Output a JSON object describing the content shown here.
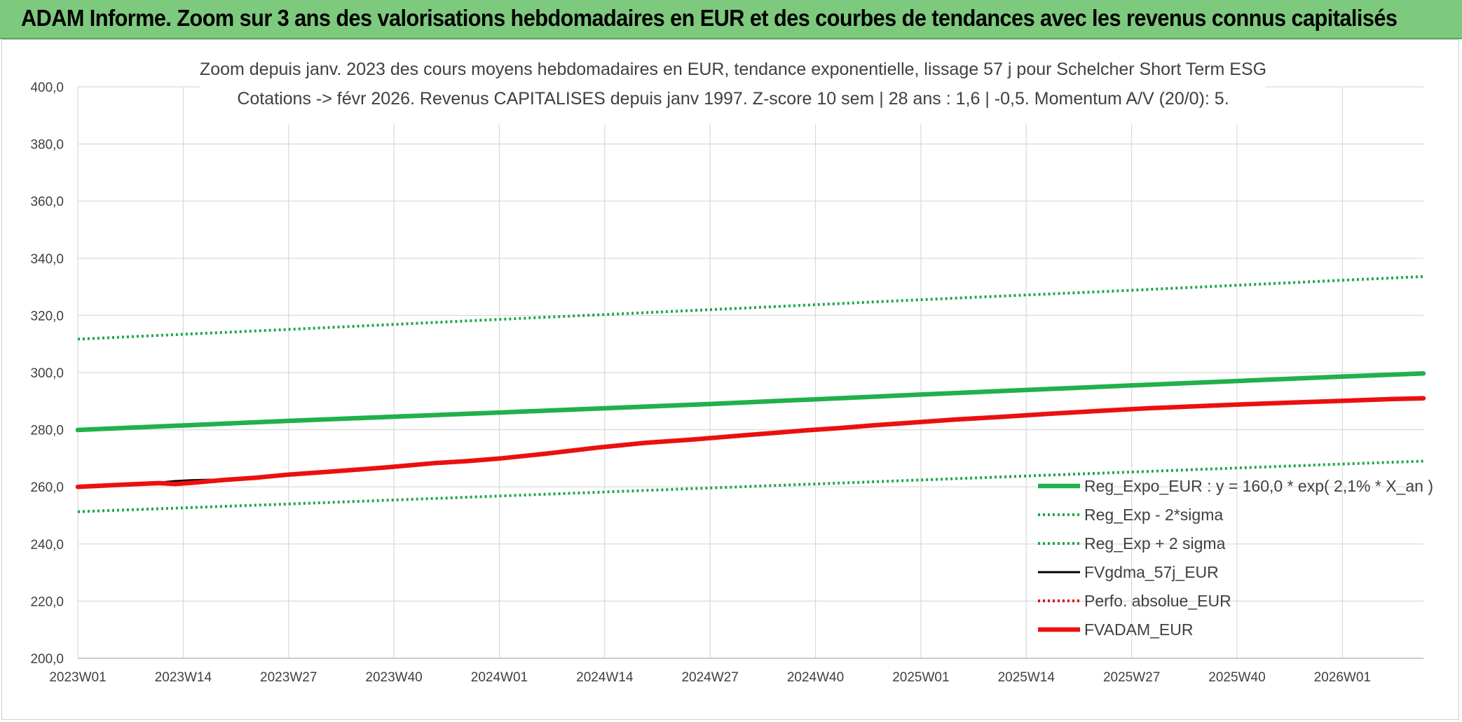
{
  "header": {
    "title": "ADAM Informe. Zoom sur 3 ans des valorisations hebdomadaires en EUR et des courbes de tendances avec les revenus connus capitalisés"
  },
  "chart_data": {
    "type": "line",
    "title_lines": [
      "Zoom depuis janv. 2023 des cours moyens hebdomadaires en EUR, tendance exponentielle, lissage 57 j pour Schelcher Short Term ESG",
      "Cotations -> févr 2026. Revenus CAPITALISES depuis janv 1997. Z-score 10 sem | 28 ans : 1,6 | -0,5. Momentum A/V (20/0): 5."
    ],
    "xlabel": "",
    "ylabel": "",
    "ylim": [
      200,
      400
    ],
    "y_ticks": [
      "200,0",
      "220,0",
      "240,0",
      "260,0",
      "280,0",
      "300,0",
      "320,0",
      "340,0",
      "360,0",
      "380,0",
      "400,0"
    ],
    "x_ticks": [
      "2023W01",
      "2023W14",
      "2023W27",
      "2023W40",
      "2024W01",
      "2024W14",
      "2024W27",
      "2024W40",
      "2025W01",
      "2025W14",
      "2025W27",
      "2025W40",
      "2026W01"
    ],
    "x_range_weeks": [
      0,
      166
    ],
    "grid": true,
    "legend_position": "bottom-right",
    "colors": {
      "green": "#22b04b",
      "green_dotted": "#1aa84a",
      "black": "#000000",
      "red_dotted": "#e01010",
      "red": "#ee1111",
      "grid": "#d9d9d9"
    },
    "series": [
      {
        "name": "Reg_Expo_EUR : y = 160,0 * exp( 2,1% *  X_an )",
        "style": "solid-thick",
        "color": "#22b04b",
        "x": [
          0,
          26,
          52,
          78,
          104,
          130,
          156,
          166
        ],
        "y": [
          279.9,
          283.1,
          286.0,
          289.0,
          292.3,
          295.5,
          298.6,
          299.7
        ]
      },
      {
        "name": "Reg_Exp - 2*sigma",
        "style": "dotted",
        "color": "#1aa84a",
        "x": [
          0,
          26,
          52,
          78,
          104,
          130,
          156,
          166
        ],
        "y": [
          251.3,
          254.0,
          256.8,
          259.6,
          262.4,
          265.2,
          268.0,
          269.0
        ]
      },
      {
        "name": "Reg_Exp + 2 sigma",
        "style": "dotted",
        "color": "#1aa84a",
        "x": [
          0,
          26,
          52,
          78,
          104,
          130,
          156,
          166
        ],
        "y": [
          311.7,
          315.1,
          318.6,
          322.0,
          325.5,
          328.8,
          332.3,
          333.6
        ]
      },
      {
        "name": "FVgdma_57j_EUR",
        "style": "solid",
        "color": "#000000",
        "x": [
          0,
          6,
          10,
          12,
          14,
          18,
          22,
          26,
          32,
          38,
          44,
          48,
          52,
          58,
          64,
          70,
          76,
          82,
          86,
          90,
          94,
          98,
          102,
          108,
          114,
          120,
          126,
          132,
          138,
          144,
          150,
          156,
          162,
          166
        ],
        "y": [
          260.0,
          260.9,
          261.5,
          262.0,
          262.3,
          262.6,
          263.3,
          264.3,
          265.6,
          266.9,
          268.4,
          269.1,
          270.0,
          271.8,
          273.8,
          275.5,
          276.7,
          278.0,
          278.9,
          279.9,
          280.7,
          281.6,
          282.4,
          283.6,
          284.6,
          285.7,
          286.7,
          287.6,
          288.3,
          289.0,
          289.6,
          290.2,
          290.8,
          291.1
        ]
      },
      {
        "name": "Perfo. absolue_EUR",
        "style": "dotted",
        "color": "#e01010",
        "x": [
          0,
          6,
          10,
          12,
          14,
          18,
          22,
          26,
          32,
          38,
          44,
          48,
          52,
          58,
          64,
          70,
          76,
          82,
          86,
          90,
          94,
          98,
          102,
          108,
          114,
          120,
          126,
          132,
          138,
          144,
          150,
          156,
          162,
          166
        ],
        "y": [
          260.0,
          260.8,
          261.3,
          261.0,
          261.4,
          262.4,
          263.2,
          264.3,
          265.5,
          266.8,
          268.3,
          269.0,
          269.9,
          271.7,
          273.7,
          275.4,
          276.6,
          278.0,
          278.9,
          279.8,
          280.6,
          281.5,
          282.3,
          283.5,
          284.5,
          285.6,
          286.6,
          287.5,
          288.2,
          288.9,
          289.5,
          290.1,
          290.7,
          291.0
        ]
      },
      {
        "name": "FVADAM_EUR",
        "style": "solid-thick",
        "color": "#ee1111",
        "x": [
          0,
          6,
          10,
          12,
          14,
          18,
          22,
          26,
          32,
          38,
          44,
          48,
          52,
          58,
          64,
          70,
          76,
          82,
          86,
          90,
          94,
          98,
          102,
          108,
          114,
          120,
          126,
          132,
          138,
          144,
          150,
          156,
          162,
          166
        ],
        "y": [
          260.0,
          260.8,
          261.3,
          261.0,
          261.4,
          262.4,
          263.2,
          264.3,
          265.5,
          266.8,
          268.3,
          269.0,
          269.9,
          271.7,
          273.7,
          275.4,
          276.6,
          278.0,
          278.9,
          279.8,
          280.6,
          281.5,
          282.3,
          283.5,
          284.5,
          285.6,
          286.6,
          287.5,
          288.2,
          288.9,
          289.5,
          290.1,
          290.7,
          291.0
        ]
      }
    ]
  }
}
